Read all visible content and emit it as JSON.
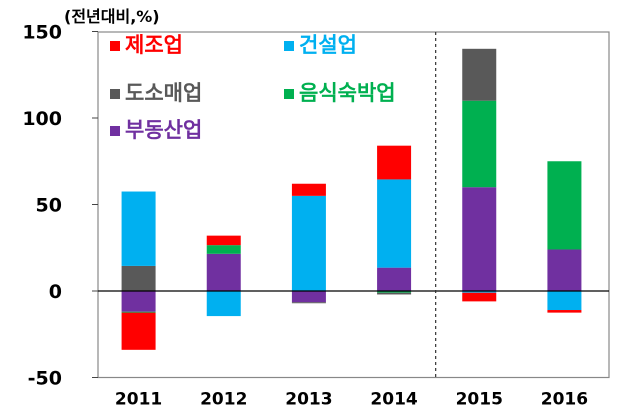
{
  "chart_data": {
    "type": "bar",
    "stacked": true,
    "unit_label": "(전년대비,%)",
    "categories": [
      "2011",
      "2012",
      "2013",
      "2014",
      "2015",
      "2016"
    ],
    "ylim": [
      -50,
      150
    ],
    "yticks": [
      -50,
      0,
      50,
      100,
      150
    ],
    "legend_position": "top-left inside",
    "series": [
      {
        "name": "부동산업",
        "color": "#7030A0",
        "values": [
          -12,
          21.5,
          -6.5,
          13.5,
          60,
          24
        ]
      },
      {
        "name": "음식숙박업",
        "color": "#00B050",
        "values": [
          -0.5,
          5,
          0,
          -1,
          50,
          51
        ]
      },
      {
        "name": "도소매업",
        "color": "#595959",
        "values": [
          14.5,
          0,
          -0.5,
          -1,
          30,
          0
        ]
      },
      {
        "name": "건설업",
        "color": "#00B0F0",
        "values": [
          43,
          -14.5,
          55,
          51,
          -1,
          -11
        ]
      },
      {
        "name": "제조업",
        "color": "#FF0000",
        "values": [
          -21.5,
          5.5,
          7,
          19.5,
          -5,
          -1.5
        ]
      }
    ],
    "legend_order": [
      "제조업",
      "건설업",
      "도소매업",
      "음식숙박업",
      "부동산업"
    ],
    "divider_between": [
      "2014",
      "2015"
    ]
  }
}
